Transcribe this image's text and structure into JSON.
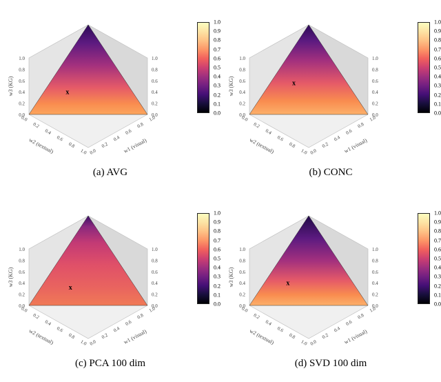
{
  "figure": {
    "background_color": "#ffffff",
    "caption_fontsize": 15,
    "tick_fontsize": 7,
    "axis_label_fontsize": 8,
    "subplots": [
      {
        "id": "a",
        "caption": "(a) AVG",
        "type": "ternary-heatmap",
        "axes": {
          "left": {
            "label": "w3 (KG)",
            "ticks": [
              0.0,
              0.2,
              0.4,
              0.6,
              0.8,
              1.0
            ]
          },
          "right": {
            "label": "w1 (visual)",
            "ticks": [
              0.0,
              0.2,
              0.4,
              0.6,
              0.8,
              1.0
            ]
          },
          "bottom": {
            "label": "w2 (textual)",
            "ticks": [
              0.0,
              0.2,
              0.4,
              0.6,
              0.8,
              1.0
            ]
          }
        },
        "marker": {
          "symbol": "x",
          "w1": 0.2,
          "w2": 0.55,
          "w3": 0.25
        },
        "gradient_stops": [
          {
            "at_w3": 0.0,
            "color": "#fca55d"
          },
          {
            "at_w3": 0.12,
            "color": "#f98c4f"
          },
          {
            "at_w3": 0.3,
            "color": "#e55a68"
          },
          {
            "at_w3": 0.55,
            "color": "#a3307e"
          },
          {
            "at_w3": 0.8,
            "color": "#5c1a80"
          },
          {
            "at_w3": 1.0,
            "color": "#2c0b57"
          }
        ],
        "shading": {
          "left_face": "#e5e5e5",
          "right_face": "#d9d9d9",
          "floor": "#f0f0f0"
        }
      },
      {
        "id": "b",
        "caption": "(b) CONC",
        "type": "ternary-heatmap",
        "axes": {
          "left": {
            "label": "w3 (KG)",
            "ticks": [
              0.0,
              0.2,
              0.4,
              0.6,
              0.8,
              1.0
            ]
          },
          "right": {
            "label": "w1 (visual)",
            "ticks": [
              0.0,
              0.2,
              0.4,
              0.6,
              0.8,
              1.0
            ]
          },
          "bottom": {
            "label": "w2 (textual)",
            "ticks": [
              0.0,
              0.2,
              0.4,
              0.6,
              0.8,
              1.0
            ]
          }
        },
        "marker": {
          "symbol": "x",
          "w1": 0.2,
          "w2": 0.45,
          "w3": 0.35
        },
        "gradient_stops": [
          {
            "at_w3": 0.0,
            "color": "#fcb06a"
          },
          {
            "at_w3": 0.15,
            "color": "#f98c4f"
          },
          {
            "at_w3": 0.35,
            "color": "#e55a68"
          },
          {
            "at_w3": 0.6,
            "color": "#a3307e"
          },
          {
            "at_w3": 0.82,
            "color": "#5c1a80"
          },
          {
            "at_w3": 1.0,
            "color": "#2c0b57"
          }
        ],
        "shading": {
          "left_face": "#e5e5e5",
          "right_face": "#d9d9d9",
          "floor": "#f0f0f0"
        }
      },
      {
        "id": "c",
        "caption": "(c) PCA 100 dim",
        "type": "ternary-heatmap",
        "axes": {
          "left": {
            "label": "w3 (KG)",
            "ticks": [
              0.0,
              0.2,
              0.4,
              0.6,
              0.8,
              1.0
            ]
          },
          "right": {
            "label": "w1 (visual)",
            "ticks": [
              0.0,
              0.2,
              0.4,
              0.6,
              0.8,
              1.0
            ]
          },
          "bottom": {
            "label": "w2 (textual)",
            "ticks": [
              0.0,
              0.2,
              0.4,
              0.6,
              0.8,
              1.0
            ]
          }
        },
        "marker": {
          "symbol": "x",
          "w1": 0.25,
          "w2": 0.55,
          "w3": 0.2
        },
        "gradient_stops": [
          {
            "at_w3": 0.0,
            "color": "#f07a56"
          },
          {
            "at_w3": 0.2,
            "color": "#e9645f"
          },
          {
            "at_w3": 0.45,
            "color": "#e05068"
          },
          {
            "at_w3": 0.7,
            "color": "#c33a75"
          },
          {
            "at_w3": 0.88,
            "color": "#8a287d"
          },
          {
            "at_w3": 1.0,
            "color": "#3a0f66"
          }
        ],
        "shading": {
          "left_face": "#e5e5e5",
          "right_face": "#d9d9d9",
          "floor": "#f0f0f0"
        }
      },
      {
        "id": "d",
        "caption": "(d) SVD 100 dim",
        "type": "ternary-heatmap",
        "axes": {
          "left": {
            "label": "w3 (KG)",
            "ticks": [
              0.0,
              0.2,
              0.4,
              0.6,
              0.8,
              1.0
            ]
          },
          "right": {
            "label": "w1 (visual)",
            "ticks": [
              0.0,
              0.2,
              0.4,
              0.6,
              0.8,
              1.0
            ]
          },
          "bottom": {
            "label": "w2 (textual)",
            "ticks": [
              0.0,
              0.2,
              0.4,
              0.6,
              0.8,
              1.0
            ]
          }
        },
        "marker": {
          "symbol": "x",
          "w1": 0.2,
          "w2": 0.55,
          "w3": 0.25
        },
        "gradient_stops": [
          {
            "at_w3": 0.0,
            "color": "#fcb06a"
          },
          {
            "at_w3": 0.12,
            "color": "#f98c4f"
          },
          {
            "at_w3": 0.28,
            "color": "#e55a68"
          },
          {
            "at_w3": 0.5,
            "color": "#a3307e"
          },
          {
            "at_w3": 0.75,
            "color": "#5c1a80"
          },
          {
            "at_w3": 1.0,
            "color": "#200a47"
          }
        ],
        "shading": {
          "left_face": "#e5e5e5",
          "right_face": "#d9d9d9",
          "floor": "#f0f0f0"
        }
      }
    ],
    "colorbar": {
      "ticks": [
        0.0,
        0.1,
        0.2,
        0.3,
        0.4,
        0.5,
        0.6,
        0.7,
        0.8,
        0.9,
        1.0
      ],
      "colormap": "magma",
      "stops": [
        {
          "t": 0.0,
          "color": "#000004"
        },
        {
          "t": 0.1,
          "color": "#180f3d"
        },
        {
          "t": 0.2,
          "color": "#440f76"
        },
        {
          "t": 0.3,
          "color": "#721f81"
        },
        {
          "t": 0.4,
          "color": "#9e2f7f"
        },
        {
          "t": 0.5,
          "color": "#cd4071"
        },
        {
          "t": 0.6,
          "color": "#f1605d"
        },
        {
          "t": 0.7,
          "color": "#fd9567"
        },
        {
          "t": 0.8,
          "color": "#fec185"
        },
        {
          "t": 0.9,
          "color": "#fde2a3"
        },
        {
          "t": 1.0,
          "color": "#fcfdbf"
        }
      ]
    }
  }
}
